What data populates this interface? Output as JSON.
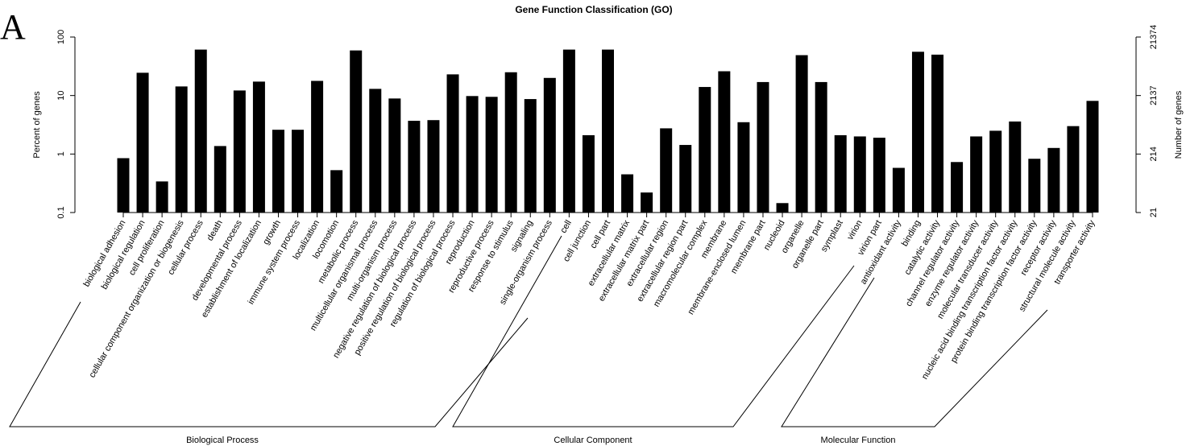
{
  "chart_data": {
    "type": "bar",
    "title": "Gene Function Classification (GO)",
    "panel_label": "A",
    "ylabel": "Percent of genes",
    "y2label": "Number of genes",
    "log_scale": true,
    "color": "#000000",
    "ylim": [
      0.1,
      100
    ],
    "yticks": [
      0.1,
      1,
      10,
      100
    ],
    "y2lim": [
      21.374,
      21374
    ],
    "y2ticks": [
      {
        "value": 21.374,
        "label": "21"
      },
      {
        "value": 213.74,
        "label": "214"
      },
      {
        "value": 2137.4,
        "label": "2137"
      },
      21374
    ],
    "groups": [
      {
        "name": "Biological Process",
        "categories": [
          "biological adhesion",
          "biological regulation",
          "cell proliferation",
          "cellular component organization or biogenesis",
          "cellular process",
          "death",
          "developmental process",
          "establishment of localization",
          "growth",
          "immune system process",
          "localization",
          "locomotion",
          "metabolic process",
          "multicellular organismal process",
          "multi-organism process",
          "negative regulation of biological process",
          "positive regulation of biological process",
          "regulation of biological process",
          "reproduction",
          "reproductive process",
          "response to stimulus",
          "signaling",
          "single-organism process"
        ],
        "values": [
          0.85,
          24.5,
          0.34,
          14.3,
          61,
          1.37,
          12.2,
          17.3,
          2.6,
          2.6,
          17.8,
          0.53,
          59,
          13,
          8.9,
          3.7,
          3.8,
          23,
          9.8,
          9.5,
          25,
          8.7,
          20
        ]
      },
      {
        "name": "Cellular Component",
        "categories": [
          "cell",
          "cell junction",
          "cell part",
          "extracellular matrix",
          "extracellular matrix part",
          "extracellular region",
          "extracellular region part",
          "macromolecular complex",
          "membrane",
          "membrane-enclosed lumen",
          "membrane part",
          "nucleoid",
          "organelle",
          "organelle part",
          "symplast",
          "virion",
          "virion part"
        ],
        "values": [
          61,
          2.1,
          61,
          0.45,
          0.22,
          2.75,
          1.43,
          14,
          26,
          3.5,
          17,
          0.145,
          49,
          17,
          2.1,
          2.0,
          1.9
        ]
      },
      {
        "name": "Molecular Function",
        "categories": [
          "antioxidant activity",
          "binding",
          "catalytic activity",
          "channel regulator activity",
          "enzyme regulator activity",
          "molecular transducer activity",
          "nucleic acid binding transcription factor activity",
          "protein binding transcription factor activity",
          "receptor activity",
          "structural molecule activity",
          "transporter activity"
        ],
        "values": [
          0.58,
          56,
          50,
          0.73,
          2.0,
          2.5,
          3.6,
          0.83,
          1.27,
          3.0,
          8.1
        ]
      }
    ]
  }
}
